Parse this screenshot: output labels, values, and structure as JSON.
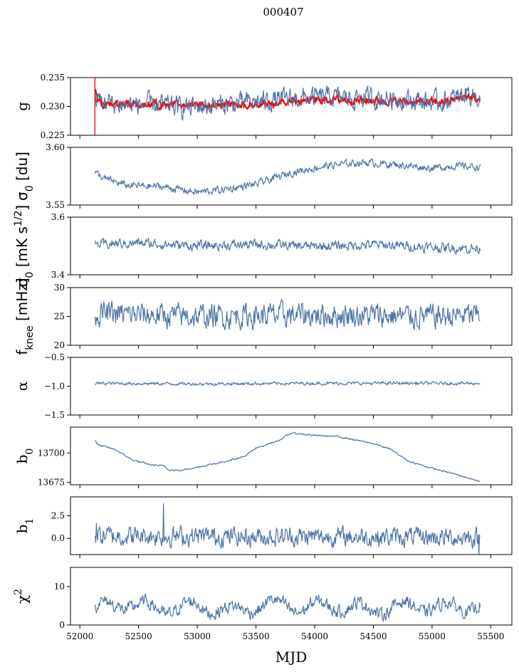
{
  "chart_data": {
    "type": "line",
    "title": "000407",
    "xlabel": "MJD",
    "xlim": [
      51920,
      55680
    ],
    "x_ticks": [
      "52000",
      "52500",
      "53000",
      "53500",
      "54000",
      "54500",
      "55000",
      "55500"
    ],
    "x_range": [
      52130,
      55410
    ],
    "panels": [
      {
        "key": "g",
        "ylabel": "g",
        "ylim": [
          0.225,
          0.235
        ],
        "ytick_values": [
          0.225,
          0.23,
          0.235
        ],
        "ytick_labels": [
          "0.225",
          "0.230",
          "0.235"
        ],
        "series": [
          {
            "color": "#ff0000",
            "profile": [
              [
                52120,
                0.2346
              ],
              [
                52150,
                0.231
              ],
              [
                52200,
                0.2302
              ],
              [
                52400,
                0.2306
              ],
              [
                52700,
                0.2303
              ],
              [
                53000,
                0.2302
              ],
              [
                53300,
                0.2302
              ],
              [
                53600,
                0.2305
              ],
              [
                53900,
                0.231
              ],
              [
                54200,
                0.2312
              ],
              [
                54500,
                0.231
              ],
              [
                54800,
                0.2308
              ],
              [
                55100,
                0.2307
              ],
              [
                55300,
                0.2318
              ],
              [
                55400,
                0.231
              ]
            ],
            "noise_amp": 0.0006
          },
          {
            "color": "#4e74a6",
            "profile": [
              [
                52130,
                0.2315
              ],
              [
                52300,
                0.2303
              ],
              [
                52600,
                0.2304
              ],
              [
                52900,
                0.2298
              ],
              [
                53200,
                0.2303
              ],
              [
                53500,
                0.2308
              ],
              [
                53800,
                0.2313
              ],
              [
                54100,
                0.2316
              ],
              [
                54400,
                0.2314
              ],
              [
                54700,
                0.2314
              ],
              [
                55000,
                0.2307
              ],
              [
                55200,
                0.2313
              ],
              [
                55300,
                0.2325
              ],
              [
                55410,
                0.2315
              ]
            ],
            "noise_amp": 0.0017
          }
        ]
      },
      {
        "key": "sigma0",
        "ylabel": "σ0 [du]",
        "ylim": [
          3.55,
          3.6
        ],
        "ytick_values": [
          3.55,
          3.6
        ],
        "ytick_labels": [
          "3.55",
          "3.60"
        ],
        "series": [
          {
            "color": "#4e74a6",
            "profile": [
              [
                52130,
                3.578
              ],
              [
                52200,
                3.573
              ],
              [
                52400,
                3.567
              ],
              [
                52700,
                3.566
              ],
              [
                53000,
                3.561
              ],
              [
                53200,
                3.563
              ],
              [
                53500,
                3.568
              ],
              [
                53800,
                3.578
              ],
              [
                54100,
                3.584
              ],
              [
                54400,
                3.587
              ],
              [
                54700,
                3.585
              ],
              [
                55000,
                3.582
              ],
              [
                55200,
                3.584
              ],
              [
                55410,
                3.583
              ]
            ],
            "noise_amp": 0.003
          }
        ]
      },
      {
        "key": "sigma_k",
        "ylabel": "σ0 [mK s1/2]",
        "ylim": [
          3.4,
          3.6
        ],
        "ytick_values": [
          3.4,
          3.6
        ],
        "ytick_labels": [
          "3.4",
          "3.6"
        ],
        "series": [
          {
            "color": "#4e74a6",
            "profile": [
              [
                52130,
                3.505
              ],
              [
                52500,
                3.51
              ],
              [
                53000,
                3.5
              ],
              [
                53500,
                3.505
              ],
              [
                54000,
                3.498
              ],
              [
                54500,
                3.505
              ],
              [
                55000,
                3.495
              ],
              [
                55410,
                3.49
              ]
            ],
            "noise_amp": 0.016
          }
        ]
      },
      {
        "key": "fknee",
        "ylabel": "fknee [mHz]",
        "ylim": [
          20,
          30
        ],
        "ytick_values": [
          20,
          25,
          30
        ],
        "ytick_labels": [
          "20",
          "25",
          "30"
        ],
        "series": [
          {
            "color": "#4e74a6",
            "profile": [
              [
                52130,
                25.5
              ],
              [
                53000,
                25
              ],
              [
                54000,
                25.3
              ],
              [
                55000,
                25
              ],
              [
                55410,
                25.2
              ]
            ],
            "noise_amp": 2.0
          }
        ]
      },
      {
        "key": "alpha",
        "ylabel": "α",
        "ylim": [
          -1.5,
          -0.5
        ],
        "ytick_values": [
          -1.5,
          -1.0,
          -0.5
        ],
        "ytick_labels": [
          "−1.5",
          "−1.0",
          "−0.5"
        ],
        "series": [
          {
            "color": "#4e74a6",
            "profile": [
              [
                52130,
                -0.95
              ],
              [
                53000,
                -0.96
              ],
              [
                54000,
                -0.95
              ],
              [
                55000,
                -0.95
              ],
              [
                55410,
                -0.95
              ]
            ],
            "noise_amp": 0.025
          }
        ]
      },
      {
        "key": "b0",
        "ylabel": "b0",
        "ylim": [
          13673,
          13722
        ],
        "ytick_values": [
          13675,
          13700
        ],
        "ytick_labels": [
          "13675",
          "13700"
        ],
        "series": [
          {
            "color": "#4e74a6",
            "profile": [
              [
                52130,
                13711
              ],
              [
                52150,
                13707
              ],
              [
                52300,
                13703
              ],
              [
                52450,
                13694
              ],
              [
                52600,
                13690
              ],
              [
                52720,
                13689
              ],
              [
                52750,
                13686
              ],
              [
                52850,
                13685
              ],
              [
                53000,
                13688
              ],
              [
                53200,
                13692
              ],
              [
                53400,
                13697
              ],
              [
                53500,
                13704
              ],
              [
                53700,
                13711
              ],
              [
                53800,
                13717
              ],
              [
                54000,
                13715
              ],
              [
                54200,
                13714
              ],
              [
                54500,
                13708
              ],
              [
                54650,
                13703
              ],
              [
                54800,
                13693
              ],
              [
                55000,
                13687
              ],
              [
                55200,
                13682
              ],
              [
                55400,
                13676
              ]
            ],
            "noise_amp": 0.6
          }
        ]
      },
      {
        "key": "b1",
        "ylabel": "b1",
        "ylim": [
          -1.8,
          4.6
        ],
        "ytick_values": [
          0.0,
          2.5
        ],
        "ytick_labels": [
          "0.0",
          "2.5"
        ],
        "series": [
          {
            "color": "#4e74a6",
            "profile": [
              [
                52130,
                0.3
              ],
              [
                53000,
                0.2
              ],
              [
                54000,
                0.2
              ],
              [
                55000,
                0.1
              ],
              [
                55410,
                0.1
              ]
            ],
            "noise_amp": 1.0,
            "spikes": [
              [
                52710,
                3.9
              ],
              [
                55400,
                -1.8
              ],
              [
                52140,
                1.7
              ]
            ]
          }
        ]
      },
      {
        "key": "chi2",
        "ylabel": "χ2",
        "ylim": [
          0,
          15
        ],
        "ytick_values": [
          0,
          10
        ],
        "ytick_labels": [
          "0",
          "10"
        ],
        "series": [
          {
            "color": "#4e74a6",
            "profile": [
              [
                52130,
                4.5
              ],
              [
                52400,
                5.5
              ],
              [
                52700,
                4
              ],
              [
                53000,
                5
              ],
              [
                53300,
                3.5
              ],
              [
                53600,
                5.5
              ],
              [
                53900,
                4.5
              ],
              [
                54200,
                5
              ],
              [
                54500,
                4
              ],
              [
                54800,
                5
              ],
              [
                55100,
                4.5
              ],
              [
                55410,
                5
              ]
            ],
            "noise_amp": 1.6,
            "wave_amp": 1.4
          }
        ]
      }
    ]
  }
}
